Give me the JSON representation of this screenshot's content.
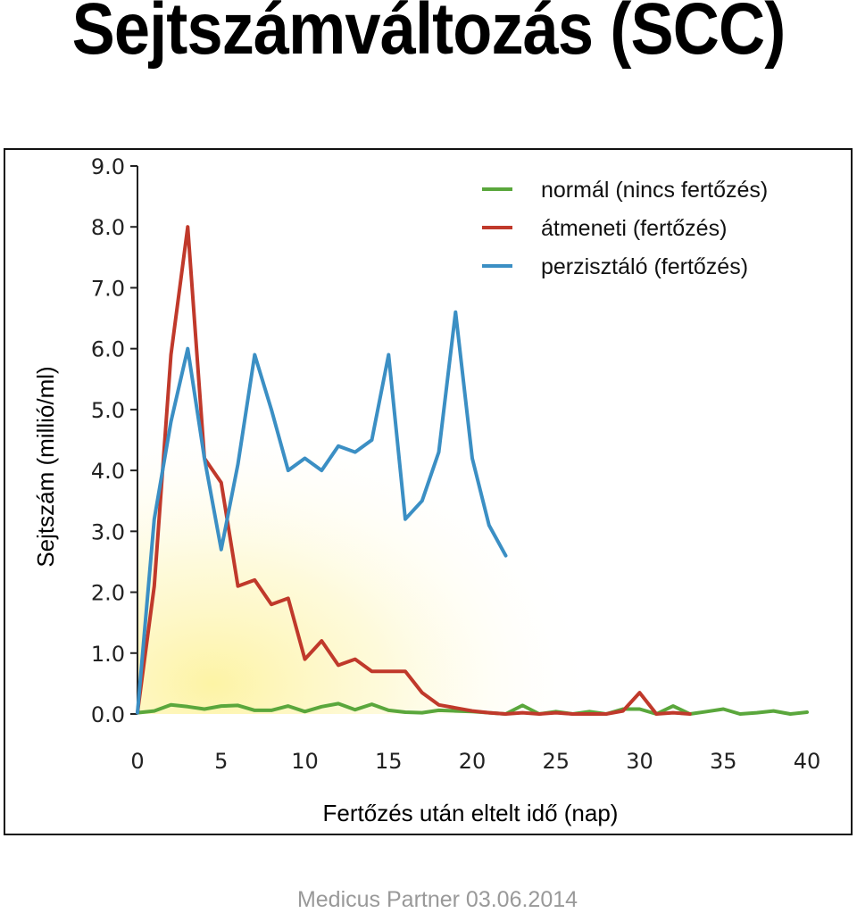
{
  "title": "Sejtszámváltozás (SCC)",
  "footer": "Medicus Partner 03.06.2014",
  "chart_data": {
    "type": "line",
    "xlabel": "Fertőzés után eltelt idő (nap)",
    "ylabel": "Sejtszám  (millió/ml)",
    "xlim": [
      0,
      40
    ],
    "ylim": [
      0,
      9
    ],
    "x_ticks": [
      "0",
      "5",
      "10",
      "15",
      "20",
      "25",
      "30",
      "35",
      "40"
    ],
    "y_ticks": [
      "0.0",
      "1.0",
      "2.0",
      "3.0",
      "4.0",
      "5.0",
      "6.0",
      "7.0",
      "8.0",
      "9.0"
    ],
    "legend_position": "top-right",
    "grid": false,
    "series": [
      {
        "name": "normál (nincs fertőzés)",
        "color": "#5aa73c",
        "x": [
          0,
          1,
          2,
          3,
          4,
          5,
          6,
          7,
          8,
          9,
          10,
          11,
          12,
          13,
          14,
          15,
          16,
          17,
          18,
          19,
          20,
          21,
          22,
          23,
          24,
          25,
          26,
          27,
          28,
          29,
          30,
          31,
          32,
          33,
          34,
          35,
          36,
          37,
          38,
          39,
          40
        ],
        "y": [
          0.02,
          0.05,
          0.15,
          0.12,
          0.08,
          0.13,
          0.14,
          0.06,
          0.06,
          0.13,
          0.04,
          0.12,
          0.17,
          0.07,
          0.16,
          0.06,
          0.03,
          0.02,
          0.06,
          0.05,
          0.04,
          0.02,
          0.0,
          0.14,
          0.0,
          0.04,
          0.0,
          0.04,
          0.0,
          0.08,
          0.08,
          0.0,
          0.13,
          0.0,
          0.04,
          0.08,
          0.0,
          0.02,
          0.05,
          0.0,
          0.03
        ]
      },
      {
        "name": "átmeneti  (fertőzés)",
        "color": "#c0392b",
        "x": [
          0,
          1,
          2,
          3,
          4,
          5,
          6,
          7,
          8,
          9,
          10,
          11,
          12,
          13,
          14,
          15,
          16,
          17,
          18,
          19,
          20,
          21,
          22,
          23,
          24,
          25,
          26,
          27,
          28,
          29,
          30,
          31,
          32,
          33
        ],
        "y": [
          0.02,
          2.1,
          5.9,
          8.0,
          4.2,
          3.8,
          2.1,
          2.2,
          1.8,
          1.9,
          0.9,
          1.2,
          0.8,
          0.9,
          0.7,
          0.7,
          0.7,
          0.35,
          0.15,
          0.1,
          0.05,
          0.02,
          0.0,
          0.02,
          0.0,
          0.02,
          0.0,
          0.0,
          0.0,
          0.05,
          0.35,
          0.0,
          0.02,
          0.0
        ]
      },
      {
        "name": "perzisztáló (fertőzés)",
        "color": "#3b8fc4",
        "x": [
          0,
          1,
          2,
          3,
          4,
          5,
          6,
          7,
          8,
          9,
          10,
          11,
          12,
          13,
          14,
          15,
          16,
          17,
          18,
          19,
          20,
          21,
          22
        ],
        "y": [
          0.02,
          3.2,
          4.8,
          6.0,
          4.2,
          2.7,
          4.1,
          5.9,
          5.0,
          4.0,
          4.2,
          4.0,
          4.4,
          4.3,
          4.5,
          5.9,
          3.2,
          3.5,
          4.3,
          6.6,
          4.2,
          3.1,
          2.6
        ]
      }
    ]
  }
}
